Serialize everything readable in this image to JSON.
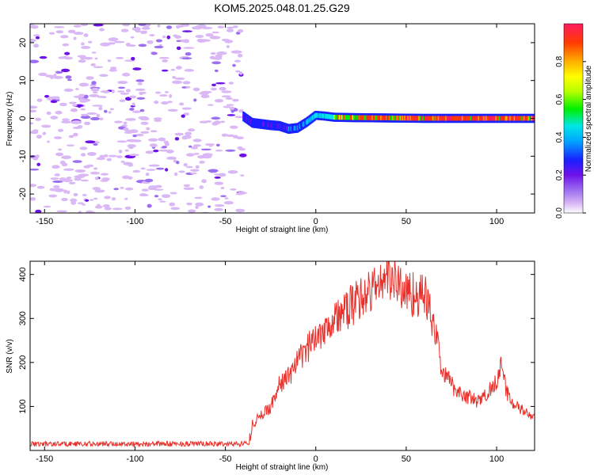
{
  "title": "KOM5.2025.048.01.25.G29",
  "chart_data": [
    {
      "type": "heatmap",
      "xlabel": "Height of straight line (km)",
      "ylabel": "Frequency (Hz)",
      "xlim": [
        -158,
        121
      ],
      "ylim": [
        -25,
        25
      ],
      "x_ticks": [
        -150,
        -100,
        -50,
        0,
        50,
        100
      ],
      "y_ticks": [
        -20,
        -10,
        0,
        10,
        20
      ],
      "colorbar": {
        "label": "Normalized spectral amplitude",
        "range": [
          0,
          1
        ],
        "ticks": [
          0.0,
          0.2,
          0.4,
          0.6,
          0.8
        ],
        "colors": [
          "#ffffff",
          "#d9b8f5",
          "#9c6ff0",
          "#6f12ea",
          "#1a20ff",
          "#00a6ff",
          "#00e6e6",
          "#00f000",
          "#b5ff00",
          "#ffff00",
          "#ffb000",
          "#ff3a00",
          "#ff1a60"
        ]
      },
      "noise_region_x": [
        -158,
        -40
      ],
      "signal_track": [
        {
          "x": -40,
          "f": 0.5
        },
        {
          "x": -35,
          "f": -1.2
        },
        {
          "x": -30,
          "f": -1.5
        },
        {
          "x": -25,
          "f": -1.8
        },
        {
          "x": -20,
          "f": -2.0
        },
        {
          "x": -15,
          "f": -2.8
        },
        {
          "x": -10,
          "f": -2.5
        },
        {
          "x": -5,
          "f": -1.0
        },
        {
          "x": 0,
          "f": 0.8
        },
        {
          "x": 5,
          "f": 0.6
        },
        {
          "x": 10,
          "f": 0.3
        },
        {
          "x": 20,
          "f": 0.2
        },
        {
          "x": 40,
          "f": 0.1
        },
        {
          "x": 60,
          "f": 0.0
        },
        {
          "x": 80,
          "f": 0.0
        },
        {
          "x": 100,
          "f": 0.0
        },
        {
          "x": 121,
          "f": 0.0
        }
      ]
    },
    {
      "type": "line",
      "xlabel": "Height of straight line (km)",
      "ylabel": "SNR (v/v)",
      "xlim": [
        -158,
        121
      ],
      "ylim": [
        0,
        430
      ],
      "x_ticks": [
        -150,
        -100,
        -50,
        0,
        50,
        100
      ],
      "y_ticks": [
        100,
        200,
        300,
        400
      ],
      "color": "#e8302b",
      "series": [
        {
          "x": [
            -158,
            -140,
            -120,
            -100,
            -80,
            -60,
            -45,
            -37,
            -35,
            -33,
            -30,
            -25,
            -20,
            -15,
            -10,
            -5,
            0,
            5,
            10,
            15,
            20,
            25,
            30,
            35,
            40,
            45,
            50,
            55,
            60,
            62,
            65,
            68,
            70,
            75,
            80,
            85,
            90,
            95,
            100,
            102,
            105,
            110,
            115,
            121
          ],
          "values": [
            15,
            15,
            15,
            15,
            15,
            15,
            15,
            17,
            60,
            70,
            80,
            100,
            150,
            170,
            200,
            230,
            260,
            280,
            300,
            310,
            330,
            350,
            360,
            380,
            400,
            380,
            360,
            355,
            350,
            340,
            280,
            230,
            180,
            150,
            130,
            120,
            110,
            130,
            160,
            200,
            140,
            100,
            90,
            70
          ]
        }
      ]
    }
  ]
}
